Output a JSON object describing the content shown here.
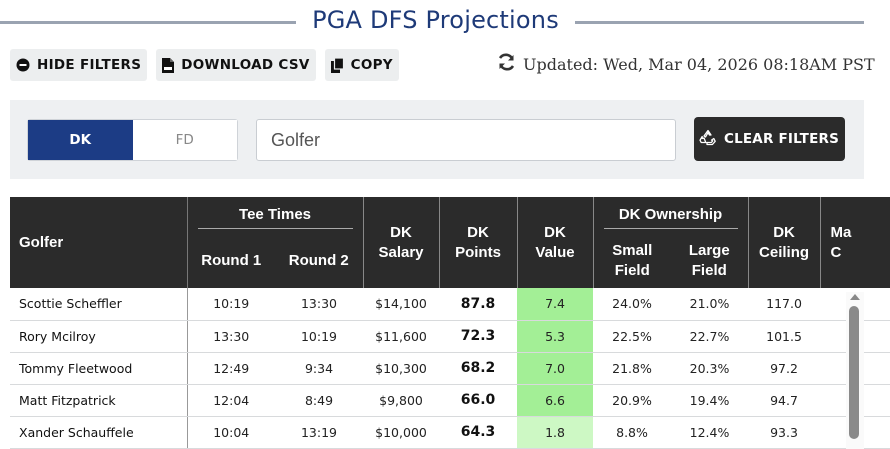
{
  "page": {
    "title": "PGA DFS Projections",
    "updated": "Updated: Wed, Mar 04, 2026 08:18AM PST"
  },
  "toolbar": {
    "hide_filters": "HIDE FILTERS",
    "download_csv": "DOWNLOAD CSV",
    "copy": "COPY"
  },
  "filters": {
    "site_options": [
      "DK",
      "FD"
    ],
    "selected_site": "DK",
    "golfer_placeholder": "Golfer",
    "clear_filters": "CLEAR FILTERS"
  },
  "table": {
    "headers": {
      "golfer": "Golfer",
      "tee_times": "Tee Times",
      "round1": "Round 1",
      "round2": "Round 2",
      "dk_salary": [
        "DK",
        "Salary"
      ],
      "dk_points": [
        "DK",
        "Points"
      ],
      "dk_value": [
        "DK",
        "Value"
      ],
      "dk_ownership": "DK Ownership",
      "small_field": [
        "Small",
        "Field"
      ],
      "large_field": [
        "Large",
        "Field"
      ],
      "dk_ceiling": [
        "DK",
        "Ceiling"
      ],
      "next_col": [
        "Ma",
        "C"
      ]
    },
    "rows": [
      {
        "golfer": "Scottie Scheffler",
        "round1": "10:19",
        "round2": "13:30",
        "salary": "$14,100",
        "points": "87.8",
        "value": "7.4",
        "small": "24.0%",
        "large": "21.0%",
        "ceiling": "117.0"
      },
      {
        "golfer": "Rory Mcilroy",
        "round1": "13:30",
        "round2": "10:19",
        "salary": "$11,600",
        "points": "72.3",
        "value": "5.3",
        "small": "22.5%",
        "large": "22.7%",
        "ceiling": "101.5"
      },
      {
        "golfer": "Tommy Fleetwood",
        "round1": "12:49",
        "round2": "9:34",
        "salary": "$10,300",
        "points": "68.2",
        "value": "7.0",
        "small": "21.8%",
        "large": "20.3%",
        "ceiling": "97.2"
      },
      {
        "golfer": "Matt Fitzpatrick",
        "round1": "12:04",
        "round2": "8:49",
        "salary": "$9,800",
        "points": "66.0",
        "value": "6.6",
        "small": "20.9%",
        "large": "19.4%",
        "ceiling": "94.7"
      },
      {
        "golfer": "Xander Schauffele",
        "round1": "10:04",
        "round2": "13:19",
        "salary": "$10,000",
        "points": "64.3",
        "value": "1.8",
        "small": "8.8%",
        "large": "12.4%",
        "ceiling": "93.3"
      }
    ]
  },
  "colors": {
    "brand": "#1c3c85",
    "header_bg": "#2b2b2b",
    "value_high": "#a3ef96",
    "value_low": "#cdf8c4"
  },
  "icons": {
    "hide_filters": "minus-circle-icon",
    "download_csv": "csv-file-icon",
    "copy": "copy-icon",
    "updated": "refresh-icon",
    "clear_filters": "recycle-icon"
  }
}
